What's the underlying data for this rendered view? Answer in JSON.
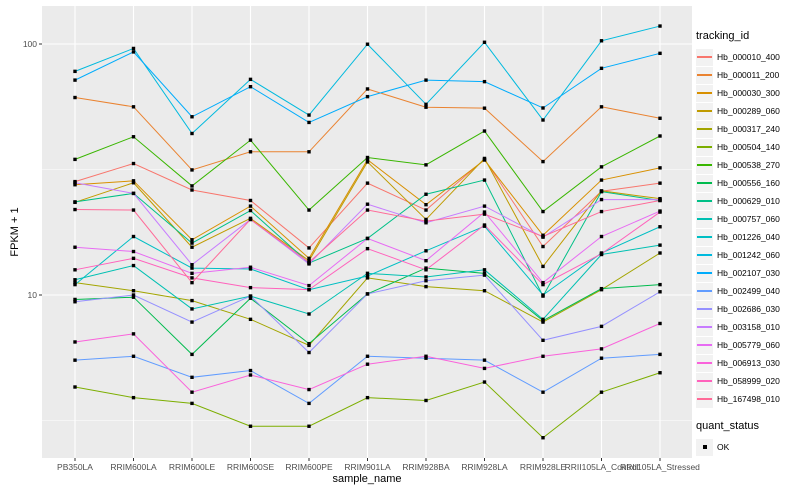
{
  "chart_data": {
    "type": "line",
    "title": "",
    "xlabel": "sample_name",
    "ylabel": "FPKM + 1",
    "yscale": "log10",
    "ylim": [
      2.2,
      140
    ],
    "yticks": [
      {
        "label": "100",
        "value": 100
      },
      {
        "label": "10",
        "value": 10
      }
    ],
    "minor_gridline_values": [
      31.62,
      3.162
    ],
    "grid": true,
    "legend_position": "right",
    "marker": "filled-black-square",
    "categories": [
      "PB350LA",
      "RRIM600LA",
      "RRIM600LE",
      "RRIM600SE",
      "RRIM600PE",
      "RRIM901LA",
      "RRIM928BA",
      "RRIM928LA",
      "RRIM928LE",
      "RRII105LA_Control",
      "RRII105LA_Stressed"
    ],
    "series": [
      {
        "name": "Hb_000010_400",
        "color": "#F8766D",
        "values": [
          28.3,
          33.4,
          26.2,
          23.8,
          15.4,
          27.9,
          21.8,
          34.7,
          15.6,
          25.9,
          27.9
        ]
      },
      {
        "name": "Hb_000011_200",
        "color": "#EA8331",
        "values": [
          61.2,
          56.2,
          31.5,
          37.2,
          37.2,
          66.2,
          56.0,
          55.5,
          34.0,
          56.2,
          50.6
        ]
      },
      {
        "name": "Hb_000030_300",
        "color": "#D89000",
        "values": [
          27.5,
          28.5,
          16.6,
          22.6,
          14.0,
          34.6,
          22.9,
          34.5,
          17.3,
          28.7,
          32.1
        ]
      },
      {
        "name": "Hb_000289_060",
        "color": "#C09B00",
        "values": [
          23.4,
          28.0,
          15.5,
          20.2,
          13.7,
          33.9,
          20.0,
          35.0,
          13.0,
          26.0,
          24.2
        ]
      },
      {
        "name": "Hb_000317_240",
        "color": "#A3A500",
        "values": [
          11.2,
          10.4,
          9.5,
          8.0,
          6.3,
          11.7,
          10.8,
          10.4,
          7.8,
          10.5,
          14.7
        ]
      },
      {
        "name": "Hb_000504_140",
        "color": "#7CAE00",
        "values": [
          4.3,
          3.9,
          3.7,
          3.0,
          3.0,
          3.9,
          3.8,
          4.5,
          2.7,
          4.1,
          4.9
        ]
      },
      {
        "name": "Hb_000538_270",
        "color": "#39B600",
        "values": [
          34.7,
          42.7,
          27.2,
          41.4,
          21.8,
          35.3,
          33.0,
          45.0,
          21.5,
          32.4,
          43.0
        ]
      },
      {
        "name": "Hb_000556_160",
        "color": "#00BB4E",
        "values": [
          9.6,
          9.8,
          5.8,
          9.7,
          6.4,
          10.1,
          12.8,
          12.2,
          7.9,
          10.6,
          11.0
        ]
      },
      {
        "name": "Hb_000629_010",
        "color": "#00C087",
        "values": [
          23.5,
          25.4,
          16.1,
          21.7,
          13.4,
          16.8,
          25.2,
          28.7,
          9.9,
          25.8,
          23.8
        ]
      },
      {
        "name": "Hb_000757_060",
        "color": "#00C0B2",
        "values": [
          11.5,
          13.1,
          8.8,
          9.9,
          8.4,
          12.2,
          11.8,
          12.6,
          8.0,
          14.5,
          15.8
        ]
      },
      {
        "name": "Hb_001226_040",
        "color": "#00BFC4",
        "values": [
          11.0,
          17.1,
          12.8,
          12.7,
          10.5,
          11.9,
          15.0,
          18.8,
          10.0,
          14.7,
          18.7
        ]
      },
      {
        "name": "Hb_001242_060",
        "color": "#00BADE",
        "values": [
          77.8,
          96.0,
          44.0,
          72.3,
          52.1,
          99.8,
          57.5,
          101.6,
          49.8,
          103.0,
          117.9
        ]
      },
      {
        "name": "Hb_002107_030",
        "color": "#00ACFC",
        "values": [
          71.8,
          93.0,
          51.3,
          67.6,
          48.7,
          61.7,
          71.8,
          70.8,
          55.6,
          80.0,
          91.8
        ]
      },
      {
        "name": "Hb_002499_040",
        "color": "#619CFF",
        "values": [
          5.5,
          5.7,
          4.7,
          5.0,
          3.7,
          5.7,
          5.6,
          5.5,
          4.1,
          5.6,
          5.8
        ]
      },
      {
        "name": "Hb_002686_030",
        "color": "#9590FF",
        "values": [
          9.4,
          10.0,
          7.8,
          9.9,
          5.9,
          10.1,
          11.4,
          12.0,
          6.6,
          7.5,
          10.3
        ]
      },
      {
        "name": "Hb_003158_010",
        "color": "#C77CFF",
        "values": [
          28.0,
          25.4,
          13.2,
          20.0,
          13.3,
          23.0,
          19.4,
          22.6,
          17.0,
          24.0,
          24.0
        ]
      },
      {
        "name": "Hb_005779_060",
        "color": "#E76BF3",
        "values": [
          15.5,
          14.9,
          12.2,
          12.9,
          10.9,
          16.8,
          13.7,
          21.4,
          11.2,
          17.1,
          21.6
        ]
      },
      {
        "name": "Hb_006913_030",
        "color": "#FA62DB",
        "values": [
          6.5,
          7.0,
          4.1,
          4.8,
          4.2,
          5.3,
          5.7,
          5.1,
          5.7,
          6.1,
          7.7
        ]
      },
      {
        "name": "Hb_058999_020",
        "color": "#FF62BC",
        "values": [
          12.6,
          14.0,
          11.7,
          10.7,
          10.5,
          15.3,
          12.6,
          19.0,
          11.0,
          14.6,
          21.4
        ]
      },
      {
        "name": "Hb_167498_010",
        "color": "#FF6A98",
        "values": [
          21.9,
          21.8,
          11.2,
          20.0,
          13.5,
          21.8,
          19.7,
          21.0,
          17.1,
          21.5,
          23.8
        ]
      }
    ]
  },
  "legend": {
    "tracking_title": "tracking_id",
    "quant_title": "quant_status",
    "quant_ok_label": "OK"
  },
  "style": {
    "panel_bg": "#EBEBEB",
    "grid_color": "#FFFFFF",
    "tick_label_color": "#4D4D4D",
    "tick_mark_color": "#333333",
    "marker_color": "#000000",
    "legend_key_bg": "#F2F2F2"
  }
}
